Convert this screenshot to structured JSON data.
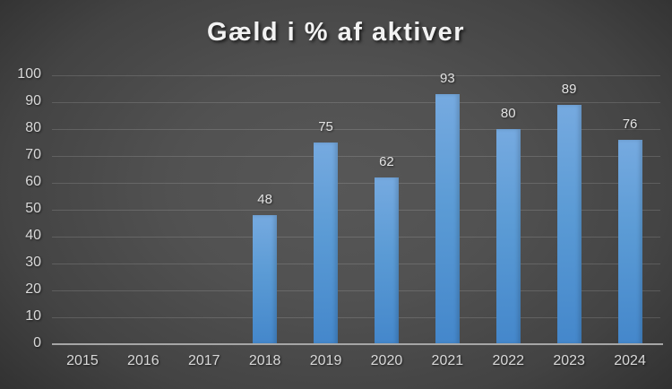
{
  "chart_data": {
    "type": "bar",
    "title": "Gæld i % af aktiver",
    "categories": [
      "2015",
      "2016",
      "2017",
      "2018",
      "2019",
      "2020",
      "2021",
      "2022",
      "2023",
      "2024"
    ],
    "values": [
      null,
      null,
      null,
      48,
      75,
      62,
      93,
      80,
      89,
      76
    ],
    "xlabel": "",
    "ylabel": "",
    "ylim": [
      0,
      100
    ],
    "yticks": [
      0,
      10,
      20,
      30,
      40,
      50,
      60,
      70,
      80,
      90,
      100
    ],
    "grid": true,
    "legend": false,
    "data_labels_shown": true
  },
  "colors": {
    "background_center": "#575757",
    "background_edge": "#242424",
    "bar_top": "#76AAE0",
    "bar_mid": "#5B9BD5",
    "bar_bottom": "#4487CB",
    "gridline": "rgba(255,255,255,0.14)",
    "axis_line": "#A6A6A6",
    "tick_label": "#D9D9D9",
    "data_label": "#E3E3E3",
    "title": "#F2F2F2"
  }
}
